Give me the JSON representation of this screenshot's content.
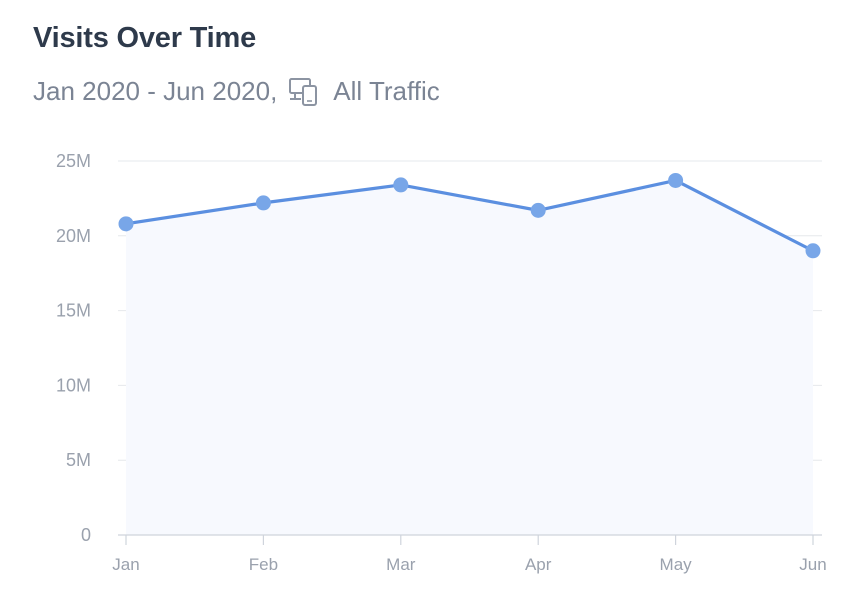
{
  "header": {
    "title": "Visits Over Time",
    "date_range": "Jan 2020 - Jun 2020,",
    "traffic_icon": "devices-icon",
    "traffic_label": "All Traffic"
  },
  "colors": {
    "line": "#5b8fe0",
    "point": "#78a6e8",
    "area": "#f7f9fe",
    "grid": "#e6e8ec",
    "axis": "#cfd4dc",
    "tick_text": "#9aa1ad"
  },
  "chart_data": {
    "type": "area",
    "title": "Visits Over Time",
    "subtitle": "Jan 2020 - Jun 2020, All Traffic",
    "xlabel": "",
    "ylabel": "",
    "categories": [
      "Jan",
      "Feb",
      "Mar",
      "Apr",
      "May",
      "Jun"
    ],
    "series": [
      {
        "name": "Visits",
        "values": [
          20800000,
          22200000,
          23400000,
          21700000,
          23700000,
          19000000
        ]
      }
    ],
    "ylim": [
      0,
      25000000
    ],
    "yticks": [
      0,
      5000000,
      10000000,
      15000000,
      20000000,
      25000000
    ],
    "ytick_labels": [
      "0",
      "5M",
      "10M",
      "15M",
      "20M",
      "25M"
    ],
    "grid": true,
    "legend": "none"
  }
}
